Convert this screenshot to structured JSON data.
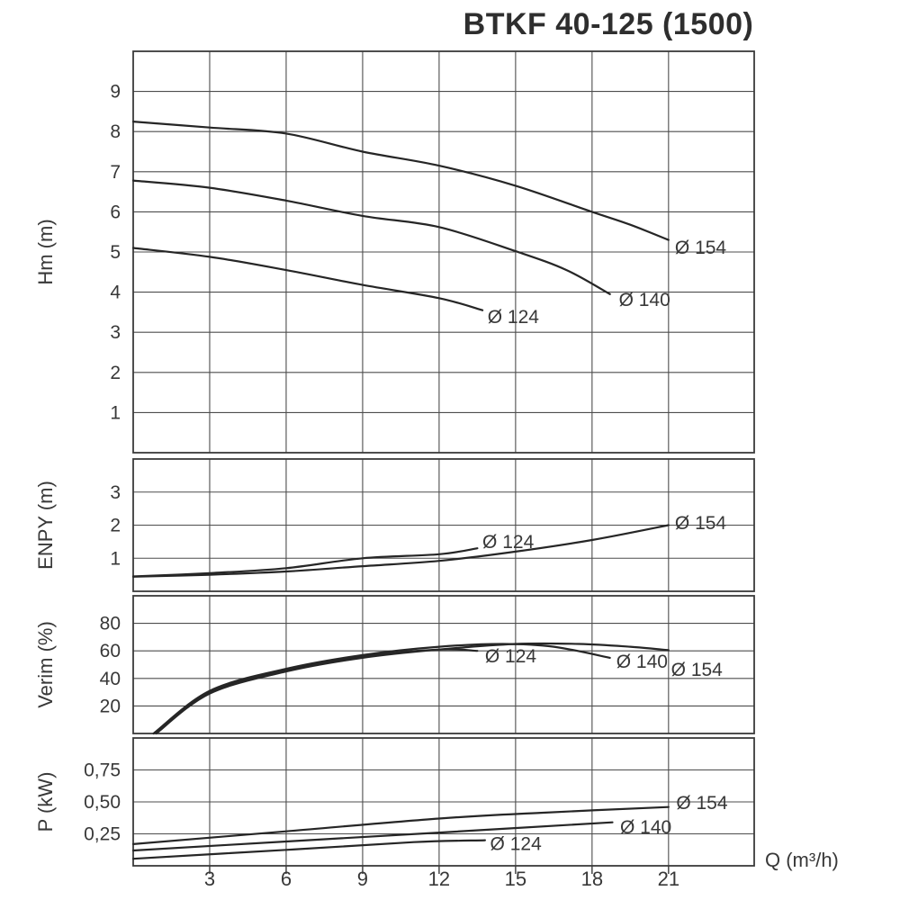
{
  "title": "BTKF 40-125 (1500)",
  "x_axis": {
    "label": "Q (m³/h)",
    "tick_values": [
      3,
      6,
      9,
      12,
      15,
      18,
      21
    ],
    "tick_labels": [
      "3",
      "6",
      "9",
      "12",
      "15",
      "18",
      "21"
    ],
    "min": 0,
    "max": 24.36,
    "grid": true
  },
  "colors": {
    "curve": "#262626",
    "grid": "#4d4d4d",
    "border": "#3a3a3a",
    "text": "#383838"
  },
  "chart_data": [
    {
      "type": "line",
      "name": "head",
      "ylabel": "Hm (m)",
      "ylim": [
        0,
        10
      ],
      "grid": true,
      "yticks": [
        [
          1,
          "1"
        ],
        [
          2,
          "2"
        ],
        [
          3,
          "3"
        ],
        [
          4,
          "4"
        ],
        [
          5,
          "5"
        ],
        [
          6,
          "6"
        ],
        [
          7,
          "7"
        ],
        [
          8,
          "8"
        ],
        [
          9,
          "9"
        ]
      ],
      "series": [
        {
          "name": "Ø 154",
          "points": [
            [
              0,
              8.25
            ],
            [
              3,
              8.1
            ],
            [
              6,
              7.95
            ],
            [
              9,
              7.5
            ],
            [
              12,
              7.15
            ],
            [
              15,
              6.65
            ],
            [
              18,
              6.0
            ],
            [
              19.5,
              5.68
            ],
            [
              21,
              5.3
            ]
          ],
          "label_at": [
            21.25,
            5.1
          ]
        },
        {
          "name": "Ø 140",
          "points": [
            [
              0,
              6.78
            ],
            [
              3,
              6.6
            ],
            [
              6,
              6.28
            ],
            [
              9,
              5.9
            ],
            [
              12,
              5.62
            ],
            [
              15,
              5.02
            ],
            [
              17,
              4.55
            ],
            [
              18.7,
              3.95
            ]
          ],
          "label_at": [
            19.05,
            3.8
          ]
        },
        {
          "name": "Ø 124",
          "points": [
            [
              0,
              5.1
            ],
            [
              3,
              4.88
            ],
            [
              6,
              4.55
            ],
            [
              9,
              4.18
            ],
            [
              12,
              3.85
            ],
            [
              13.7,
              3.55
            ]
          ],
          "label_at": [
            13.9,
            3.38
          ]
        }
      ]
    },
    {
      "type": "line",
      "name": "npsh",
      "ylabel": "ENPY (m)",
      "ylim": [
        0,
        4
      ],
      "grid": true,
      "yticks": [
        [
          1,
          "1"
        ],
        [
          2,
          "2"
        ],
        [
          3,
          "3"
        ]
      ],
      "series": [
        {
          "name": "Ø 124",
          "points": [
            [
              0,
              0.45
            ],
            [
              3,
              0.55
            ],
            [
              6,
              0.7
            ],
            [
              9,
              1.0
            ],
            [
              12,
              1.12
            ],
            [
              13.5,
              1.3
            ]
          ],
          "label_at": [
            13.7,
            1.48
          ]
        },
        {
          "name": "Ø 154",
          "points": [
            [
              0,
              0.44
            ],
            [
              3,
              0.5
            ],
            [
              6,
              0.6
            ],
            [
              9,
              0.76
            ],
            [
              12,
              0.92
            ],
            [
              15,
              1.2
            ],
            [
              18,
              1.55
            ],
            [
              21,
              2.0
            ]
          ],
          "label_at": [
            21.25,
            2.05
          ]
        }
      ]
    },
    {
      "type": "line",
      "name": "efficiency",
      "ylabel": "Verim (%)",
      "ylim": [
        0,
        100
      ],
      "grid": true,
      "yticks": [
        [
          20,
          "20"
        ],
        [
          40,
          "40"
        ],
        [
          60,
          "60"
        ],
        [
          80,
          "80"
        ]
      ],
      "series": [
        {
          "name": "Ø 124",
          "points": [
            [
              0.8,
              0
            ],
            [
              3,
              30
            ],
            [
              6,
              46
            ],
            [
              9,
              56
            ],
            [
              12,
              61
            ],
            [
              13.5,
              60
            ]
          ],
          "label_at": [
            13.8,
            56
          ]
        },
        {
          "name": "Ø 140",
          "points": [
            [
              0.8,
              0
            ],
            [
              3,
              31
            ],
            [
              6,
              47
            ],
            [
              9,
              57
            ],
            [
              12,
              63
            ],
            [
              14.5,
              65
            ],
            [
              16.5,
              63
            ],
            [
              18.7,
              55
            ]
          ],
          "label_at": [
            18.95,
            52
          ]
        },
        {
          "name": "Ø 154",
          "points": [
            [
              0.9,
              0
            ],
            [
              3,
              29
            ],
            [
              6,
              45
            ],
            [
              9,
              55
            ],
            [
              12,
              61
            ],
            [
              15,
              65
            ],
            [
              17.5,
              65
            ],
            [
              19.5,
              63
            ],
            [
              21,
              60.5
            ]
          ],
          "label_at": [
            21.1,
            46
          ]
        }
      ]
    },
    {
      "type": "line",
      "name": "power",
      "ylabel": "P (kW)",
      "ylim": [
        0,
        1
      ],
      "grid": true,
      "yticks": [
        [
          0.25,
          "0,25"
        ],
        [
          0.5,
          "0,50"
        ],
        [
          0.75,
          "0,75"
        ]
      ],
      "series": [
        {
          "name": "Ø 154",
          "points": [
            [
              0,
              0.17
            ],
            [
              6,
              0.27
            ],
            [
              12,
              0.37
            ],
            [
              16,
              0.415
            ],
            [
              21,
              0.46
            ]
          ],
          "label_at": [
            21.3,
            0.49
          ]
        },
        {
          "name": "Ø 140",
          "points": [
            [
              0,
              0.12
            ],
            [
              6,
              0.19
            ],
            [
              12,
              0.26
            ],
            [
              18.8,
              0.34
            ]
          ],
          "label_at": [
            19.1,
            0.3
          ]
        },
        {
          "name": "Ø 124",
          "points": [
            [
              0,
              0.055
            ],
            [
              6,
              0.125
            ],
            [
              11,
              0.185
            ],
            [
              13.8,
              0.2
            ]
          ],
          "label_at": [
            14.0,
            0.17
          ]
        }
      ]
    }
  ]
}
